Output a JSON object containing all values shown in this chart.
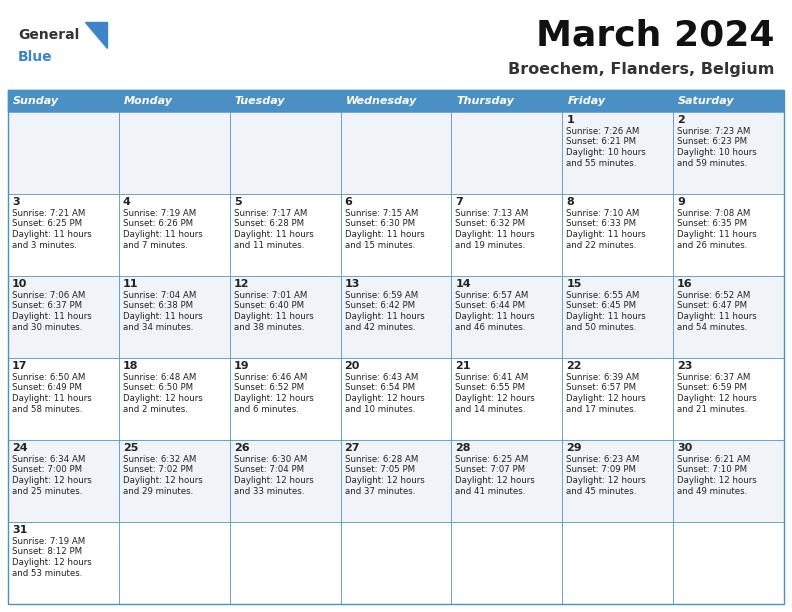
{
  "title": "March 2024",
  "subtitle": "Broechem, Flanders, Belgium",
  "days_of_week": [
    "Sunday",
    "Monday",
    "Tuesday",
    "Wednesday",
    "Thursday",
    "Friday",
    "Saturday"
  ],
  "header_bg": "#4a90c4",
  "header_text": "#ffffff",
  "border_color": "#4a90c4",
  "text_color": "#222222",
  "calendar": [
    [
      null,
      null,
      null,
      null,
      null,
      {
        "day": 1,
        "sunrise": "7:26 AM",
        "sunset": "6:21 PM",
        "daylight": "10 hours\nand 55 minutes."
      },
      {
        "day": 2,
        "sunrise": "7:23 AM",
        "sunset": "6:23 PM",
        "daylight": "10 hours\nand 59 minutes."
      }
    ],
    [
      {
        "day": 3,
        "sunrise": "7:21 AM",
        "sunset": "6:25 PM",
        "daylight": "11 hours\nand 3 minutes."
      },
      {
        "day": 4,
        "sunrise": "7:19 AM",
        "sunset": "6:26 PM",
        "daylight": "11 hours\nand 7 minutes."
      },
      {
        "day": 5,
        "sunrise": "7:17 AM",
        "sunset": "6:28 PM",
        "daylight": "11 hours\nand 11 minutes."
      },
      {
        "day": 6,
        "sunrise": "7:15 AM",
        "sunset": "6:30 PM",
        "daylight": "11 hours\nand 15 minutes."
      },
      {
        "day": 7,
        "sunrise": "7:13 AM",
        "sunset": "6:32 PM",
        "daylight": "11 hours\nand 19 minutes."
      },
      {
        "day": 8,
        "sunrise": "7:10 AM",
        "sunset": "6:33 PM",
        "daylight": "11 hours\nand 22 minutes."
      },
      {
        "day": 9,
        "sunrise": "7:08 AM",
        "sunset": "6:35 PM",
        "daylight": "11 hours\nand 26 minutes."
      }
    ],
    [
      {
        "day": 10,
        "sunrise": "7:06 AM",
        "sunset": "6:37 PM",
        "daylight": "11 hours\nand 30 minutes."
      },
      {
        "day": 11,
        "sunrise": "7:04 AM",
        "sunset": "6:38 PM",
        "daylight": "11 hours\nand 34 minutes."
      },
      {
        "day": 12,
        "sunrise": "7:01 AM",
        "sunset": "6:40 PM",
        "daylight": "11 hours\nand 38 minutes."
      },
      {
        "day": 13,
        "sunrise": "6:59 AM",
        "sunset": "6:42 PM",
        "daylight": "11 hours\nand 42 minutes."
      },
      {
        "day": 14,
        "sunrise": "6:57 AM",
        "sunset": "6:44 PM",
        "daylight": "11 hours\nand 46 minutes."
      },
      {
        "day": 15,
        "sunrise": "6:55 AM",
        "sunset": "6:45 PM",
        "daylight": "11 hours\nand 50 minutes."
      },
      {
        "day": 16,
        "sunrise": "6:52 AM",
        "sunset": "6:47 PM",
        "daylight": "11 hours\nand 54 minutes."
      }
    ],
    [
      {
        "day": 17,
        "sunrise": "6:50 AM",
        "sunset": "6:49 PM",
        "daylight": "11 hours\nand 58 minutes."
      },
      {
        "day": 18,
        "sunrise": "6:48 AM",
        "sunset": "6:50 PM",
        "daylight": "12 hours\nand 2 minutes."
      },
      {
        "day": 19,
        "sunrise": "6:46 AM",
        "sunset": "6:52 PM",
        "daylight": "12 hours\nand 6 minutes."
      },
      {
        "day": 20,
        "sunrise": "6:43 AM",
        "sunset": "6:54 PM",
        "daylight": "12 hours\nand 10 minutes."
      },
      {
        "day": 21,
        "sunrise": "6:41 AM",
        "sunset": "6:55 PM",
        "daylight": "12 hours\nand 14 minutes."
      },
      {
        "day": 22,
        "sunrise": "6:39 AM",
        "sunset": "6:57 PM",
        "daylight": "12 hours\nand 17 minutes."
      },
      {
        "day": 23,
        "sunrise": "6:37 AM",
        "sunset": "6:59 PM",
        "daylight": "12 hours\nand 21 minutes."
      }
    ],
    [
      {
        "day": 24,
        "sunrise": "6:34 AM",
        "sunset": "7:00 PM",
        "daylight": "12 hours\nand 25 minutes."
      },
      {
        "day": 25,
        "sunrise": "6:32 AM",
        "sunset": "7:02 PM",
        "daylight": "12 hours\nand 29 minutes."
      },
      {
        "day": 26,
        "sunrise": "6:30 AM",
        "sunset": "7:04 PM",
        "daylight": "12 hours\nand 33 minutes."
      },
      {
        "day": 27,
        "sunrise": "6:28 AM",
        "sunset": "7:05 PM",
        "daylight": "12 hours\nand 37 minutes."
      },
      {
        "day": 28,
        "sunrise": "6:25 AM",
        "sunset": "7:07 PM",
        "daylight": "12 hours\nand 41 minutes."
      },
      {
        "day": 29,
        "sunrise": "6:23 AM",
        "sunset": "7:09 PM",
        "daylight": "12 hours\nand 45 minutes."
      },
      {
        "day": 30,
        "sunrise": "6:21 AM",
        "sunset": "7:10 PM",
        "daylight": "12 hours\nand 49 minutes."
      }
    ],
    [
      {
        "day": 31,
        "sunrise": "7:19 AM",
        "sunset": "8:12 PM",
        "daylight": "12 hours\nand 53 minutes."
      },
      null,
      null,
      null,
      null,
      null,
      null
    ]
  ],
  "fig_width": 7.92,
  "fig_height": 6.12,
  "dpi": 100
}
